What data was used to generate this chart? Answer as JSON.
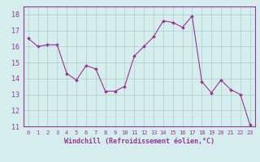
{
  "title": "",
  "xlabel": "Windchill (Refroidissement éolien,°C)",
  "ylabel": "",
  "x_values": [
    0,
    1,
    2,
    3,
    4,
    5,
    6,
    7,
    8,
    9,
    10,
    11,
    12,
    13,
    14,
    15,
    16,
    17,
    18,
    19,
    20,
    21,
    22,
    23
  ],
  "y_values": [
    16.5,
    16.0,
    16.1,
    16.1,
    14.3,
    13.9,
    14.8,
    14.6,
    13.2,
    13.2,
    13.5,
    15.4,
    16.0,
    16.6,
    17.6,
    17.5,
    17.2,
    17.9,
    13.8,
    13.1,
    13.9,
    13.3,
    13.0,
    11.1
  ],
  "line_color": "#993399",
  "marker_color": "#993399",
  "bg_color": "#d5eeed",
  "grid_color": "#aacccc",
  "axis_color": "#993399",
  "tick_label_color": "#993399",
  "xlabel_color": "#993399",
  "ylim": [
    11,
    18.5
  ],
  "xlim": [
    -0.5,
    23.5
  ],
  "yticks": [
    11,
    12,
    13,
    14,
    15,
    16,
    17,
    18
  ],
  "xticks": [
    0,
    1,
    2,
    3,
    4,
    5,
    6,
    7,
    8,
    9,
    10,
    11,
    12,
    13,
    14,
    15,
    16,
    17,
    18,
    19,
    20,
    21,
    22,
    23
  ]
}
